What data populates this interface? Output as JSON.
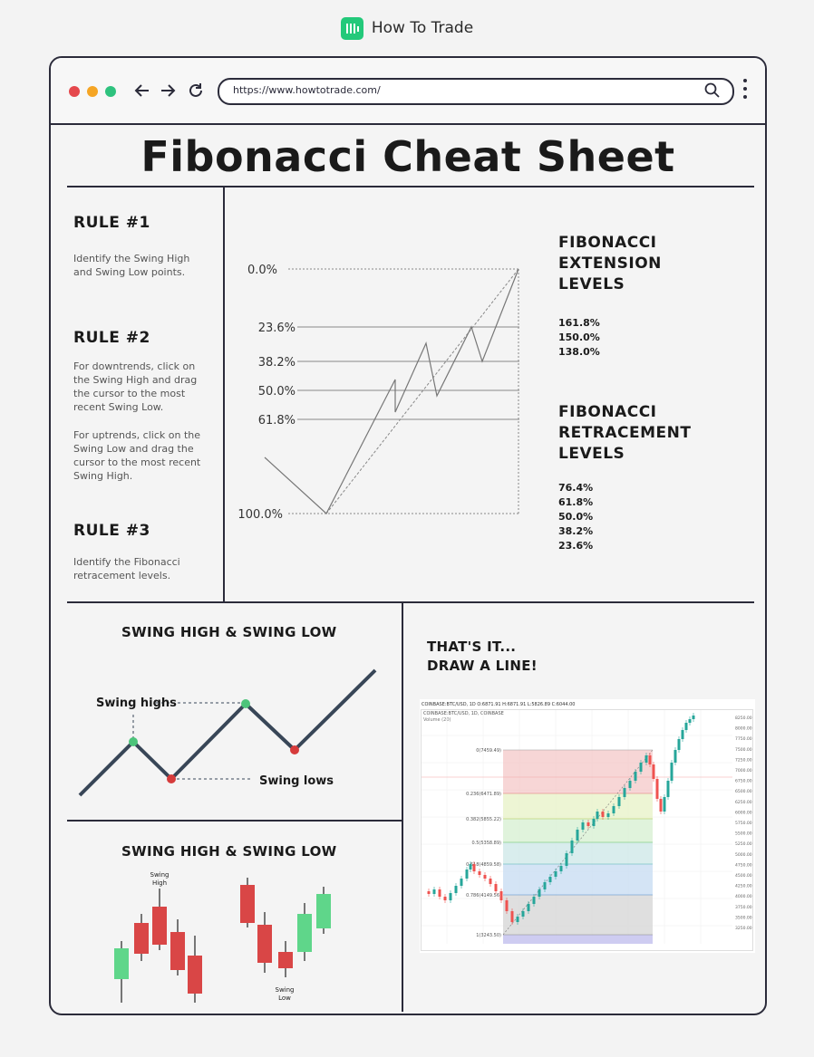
{
  "brand": {
    "name": "How To Trade",
    "logo_icon": "bar-chart-logo-icon",
    "accent": "#23c97a"
  },
  "browser": {
    "url": "https://www.howtotrade.com/",
    "traffic_lights": [
      "#e5484d",
      "#f5a524",
      "#2ec27e"
    ],
    "icons": [
      "back-arrow-icon",
      "forward-arrow-icon",
      "reload-icon",
      "search-icon",
      "more-vert-icon"
    ]
  },
  "page_title": "Fibonacci Cheat Sheet",
  "rules": [
    {
      "heading": "RULE #1",
      "text": "Identify the Swing High and Swing Low points."
    },
    {
      "heading": "RULE #2",
      "text": "For downtrends, click on the Swing High and drag the cursor to the most recent Swing Low.",
      "text2": "For uptrends, click on the Swing Low and drag the cursor to the most recent Swing High."
    },
    {
      "heading": "RULE #3",
      "text": "Identify the Fibonacci retracement levels."
    }
  ],
  "fib_diagram": {
    "levels": [
      "0.0%",
      "23.6%",
      "38.2%",
      "50.0%",
      "61.8%",
      "100.0%"
    ]
  },
  "extension": {
    "heading": "FIBONACCI\nEXTENSION\nLEVELS",
    "values": [
      "161.8%",
      "150.0%",
      "138.0%"
    ]
  },
  "retracement": {
    "heading": "FIBONACCI\nRETRACEMENT\nLEVELS",
    "values": [
      "76.4%",
      "61.8%",
      "50.0%",
      "38.2%",
      "23.6%"
    ]
  },
  "swing_section_1": {
    "heading": "SWING HIGH & SWING LOW",
    "label_highs": "Swing highs",
    "label_lows": "Swing lows",
    "colors": {
      "high": "#4cc47a",
      "low": "#d63b3b",
      "line": "#384657"
    }
  },
  "swing_section_2": {
    "heading": "SWING HIGH & SWING LOW",
    "label_high": "Swing\nHigh",
    "label_low": "Swing\nLow",
    "colors": {
      "up": "#5fd68a",
      "down": "#d94646"
    }
  },
  "draw_section": {
    "heading": "THAT'S IT...\nDRAW A LINE!",
    "chart_header": "COINBASE:BTC/USD, 1D  O:6871.91  H:6871.91  L:5826.89  C:6044.00",
    "chart_sub": "COINBASE:BTC/USD, 1D, COINBASE",
    "chart_vol": "Volume (20)",
    "fib_labels": [
      "0(7459.49)",
      "0.236(6471.89)",
      "0.382(5855.22)",
      "0.5(5358.89)",
      "0.618(4859.58)",
      "0.786(4149.56)",
      "1(3243.50)"
    ],
    "price_ticks": [
      "8250.00",
      "8000.00",
      "7750.00",
      "7500.00",
      "7250.00",
      "7000.00",
      "6750.00",
      "6500.00",
      "6250.00",
      "6000.00",
      "5750.00",
      "5500.00",
      "5250.00",
      "5000.00",
      "4750.00",
      "4500.00",
      "4250.00",
      "4000.00",
      "3750.00",
      "3500.00",
      "3250.00"
    ]
  }
}
